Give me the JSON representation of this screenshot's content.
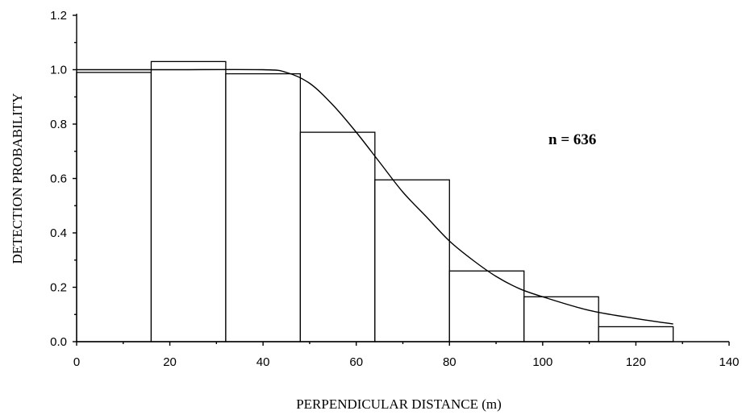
{
  "chart_data": {
    "type": "bar",
    "subtype": "histogram-with-fitted-curve",
    "xlabel": "PERPENDICULAR DISTANCE  (m)",
    "ylabel": "DETECTION PROBABILITY",
    "annotation": "n = 636",
    "xlim": [
      0,
      140
    ],
    "ylim": [
      0,
      1.2
    ],
    "x_ticks": [
      0,
      20,
      40,
      60,
      80,
      100,
      120,
      140
    ],
    "y_ticks": [
      0.0,
      0.2,
      0.4,
      0.6,
      0.8,
      1.0,
      1.2
    ],
    "x_tick_labels": [
      "0",
      "20",
      "40",
      "60",
      "80",
      "100",
      "120",
      "140"
    ],
    "y_tick_labels": [
      "0.0",
      "0.2",
      "0.4",
      "0.6",
      "0.8",
      "1.0",
      "1.2"
    ],
    "bins": [
      {
        "start": 0,
        "end": 16,
        "value": 0.99
      },
      {
        "start": 16,
        "end": 32,
        "value": 1.03
      },
      {
        "start": 32,
        "end": 48,
        "value": 0.985
      },
      {
        "start": 48,
        "end": 64,
        "value": 0.77
      },
      {
        "start": 64,
        "end": 80,
        "value": 0.595
      },
      {
        "start": 80,
        "end": 96,
        "value": 0.26
      },
      {
        "start": 96,
        "end": 112,
        "value": 0.165
      },
      {
        "start": 112,
        "end": 128,
        "value": 0.055
      }
    ],
    "curve": {
      "x": [
        0,
        20,
        40,
        45,
        50,
        55,
        60,
        65,
        70,
        75,
        80,
        85,
        90,
        95,
        100,
        110,
        120,
        128
      ],
      "y": [
        1.0,
        1.0,
        1.0,
        0.99,
        0.95,
        0.87,
        0.77,
        0.66,
        0.55,
        0.46,
        0.37,
        0.3,
        0.24,
        0.195,
        0.165,
        0.115,
        0.085,
        0.065
      ]
    },
    "grid": false,
    "legend": "none"
  }
}
